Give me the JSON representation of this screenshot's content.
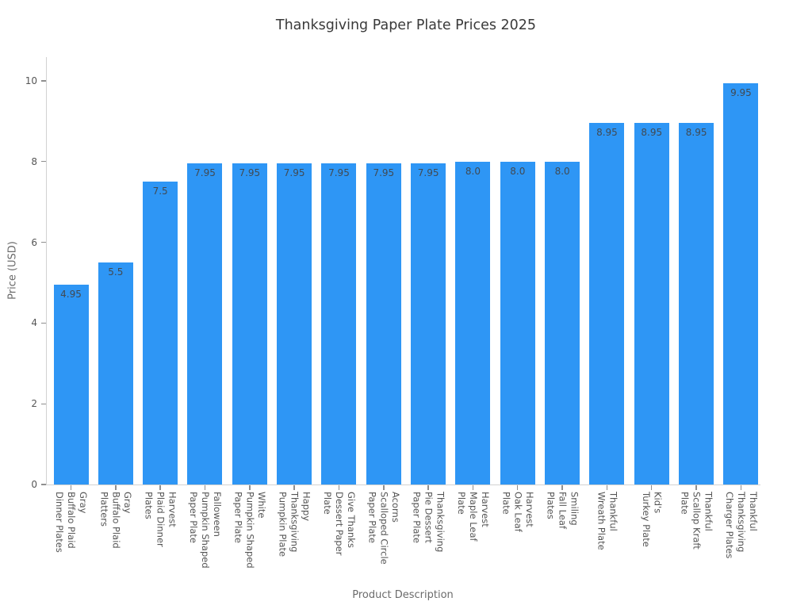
{
  "title": "Thanksgiving Paper Plate Prices 2025",
  "chart_data": {
    "type": "bar",
    "title": "Thanksgiving Paper Plate Prices 2025",
    "xlabel": "Product Description",
    "ylabel": "Price (USD)",
    "ylim": [
      0,
      10.6
    ],
    "yticks": [
      "0",
      "2",
      "4",
      "6",
      "8",
      "10"
    ],
    "ytick_values": [
      0,
      2,
      4,
      6,
      8,
      10
    ],
    "grid": false,
    "legend": false,
    "bar_color": "#2E96F5",
    "value_label_color": "#414a53",
    "categories": [
      "Gray Buffalo Plaid Dinner Plates",
      "Gray Buffalo Plaid Platters",
      "Harvest Plaid Dinner Plates",
      "Falloween Pumpkin Shaped Paper Plate",
      "White Pumpkin Shaped Paper Plate",
      "Happy Thanksgiving Pumpkin Plate",
      "Give Thanks Dessert Paper Plate",
      "Acorns Scalloped Circle Paper Plate",
      "Thanksgiving Pie Dessert Paper Plate",
      "Harvest Maple Leaf Plate",
      "Harvest Oak Leaf Plate",
      "Smiling Fall Leaf Plates",
      "Thankful Wreath Plate",
      "Kid's Turkey Plate",
      "Thankful Scallop Kraft Plate",
      "Thankful Thanksgiving Charger Plates"
    ],
    "category_lines": [
      [
        "Gray",
        "Buffalo Plaid",
        "Dinner Plates"
      ],
      [
        "Gray",
        "Buffalo Plaid",
        "Platters"
      ],
      [
        "Harvest",
        "Plaid Dinner",
        "Plates"
      ],
      [
        "Falloween",
        "Pumpkin Shaped",
        "Paper Plate"
      ],
      [
        "White",
        "Pumpkin Shaped",
        "Paper Plate"
      ],
      [
        "Happy",
        "Thanksgiving",
        "Pumpkin Plate"
      ],
      [
        "Give Thanks",
        "Dessert Paper",
        "Plate"
      ],
      [
        "Acorns",
        "Scalloped Circle",
        "Paper Plate"
      ],
      [
        "Thanksgiving",
        "Pie Dessert",
        "Paper Plate"
      ],
      [
        "Harvest",
        "Maple Leaf",
        "Plate"
      ],
      [
        "Harvest",
        "Oak Leaf",
        "Plate"
      ],
      [
        "Smiling",
        "Fall Leaf",
        "Plates"
      ],
      [
        "Thankful",
        "Wreath Plate"
      ],
      [
        "Kid's",
        "Turkey Plate"
      ],
      [
        "Thankful",
        "Scallop Kraft",
        "Plate"
      ],
      [
        "Thankful",
        "Thanksgiving",
        "Charger Plates"
      ]
    ],
    "values": [
      4.95,
      5.5,
      7.5,
      7.95,
      7.95,
      7.95,
      7.95,
      7.95,
      7.95,
      8.0,
      8.0,
      8.0,
      8.95,
      8.95,
      8.95,
      9.95
    ],
    "value_labels": [
      "4.95",
      "5.5",
      "7.5",
      "7.95",
      "7.95",
      "7.95",
      "7.95",
      "7.95",
      "7.95",
      "8.0",
      "8.0",
      "8.0",
      "8.95",
      "8.95",
      "8.95",
      "9.95"
    ]
  }
}
